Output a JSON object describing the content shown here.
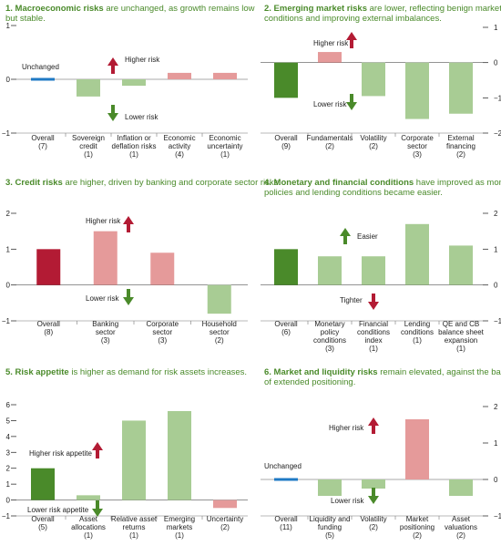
{
  "colors": {
    "dark_green": "#4a8a2a",
    "light_green": "#a8cc94",
    "dark_red": "#b31b34",
    "light_red": "#e59a9a",
    "blue": "#1f7ac4",
    "title_green": "#4a8a2a",
    "arrow_red": "#b31b34",
    "arrow_green": "#4a8a2a"
  },
  "chart_data": [
    {
      "type": "bar",
      "title_bold": "1. Macroeconomic risks",
      "title_lines": [
        " are unchanged, as growth remains low",
        "but stable."
      ],
      "categories": [
        [
          "Overall",
          "(7)"
        ],
        [
          "Sovereign",
          "credit",
          "(1)"
        ],
        [
          "Inflation or",
          "deflation risks",
          "(1)"
        ],
        [
          "Economic",
          "activity",
          "(4)"
        ],
        [
          "Economic",
          "uncertainty",
          "(1)"
        ]
      ],
      "values": [
        0,
        -0.32,
        -0.12,
        0.12,
        0.12
      ],
      "value_colors": [
        "blue",
        "light_green",
        "light_green",
        "light_red",
        "light_red"
      ],
      "ylim": [
        -1,
        1
      ],
      "yticks": [
        -1,
        0,
        1
      ],
      "axis_side": "left",
      "annotations": {
        "higher": "Higher risk",
        "lower": "Lower risk",
        "unchanged": "Unchanged"
      }
    },
    {
      "type": "bar",
      "title_bold": "2. Emerging market risks",
      "title_lines": [
        " are lower, reflecting benign market",
        "conditions and improving external imbalances."
      ],
      "categories": [
        [
          "Overall",
          "(9)"
        ],
        [
          "Fundamentals",
          "(2)"
        ],
        [
          "Volatility",
          "(2)"
        ],
        [
          "Corporate",
          "sector",
          "(3)"
        ],
        [
          "External",
          "financing",
          "(2)"
        ]
      ],
      "values": [
        -1.0,
        0.3,
        -0.95,
        -1.6,
        -1.45
      ],
      "value_colors": [
        "dark_green",
        "light_red",
        "light_green",
        "light_green",
        "light_green"
      ],
      "ylim": [
        -2,
        1
      ],
      "yticks": [
        -2,
        -1,
        0,
        1
      ],
      "axis_side": "right",
      "annotations": {
        "higher": "Higher risk",
        "lower": "Lower risk"
      }
    },
    {
      "type": "bar",
      "title_bold": "3. Credit risks",
      "title_lines": [
        " are higher, driven by banking and corporate sector risks."
      ],
      "categories": [
        [
          "Overall",
          "(8)"
        ],
        [
          "Banking",
          "sector",
          "(3)"
        ],
        [
          "Corporate",
          "sector",
          "(3)"
        ],
        [
          "Household",
          "sector",
          "(2)"
        ]
      ],
      "values": [
        1.0,
        1.5,
        0.9,
        -0.8
      ],
      "value_colors": [
        "dark_red",
        "light_red",
        "light_red",
        "light_green"
      ],
      "ylim": [
        -1,
        2
      ],
      "yticks": [
        -1,
        0,
        1,
        2
      ],
      "axis_side": "left",
      "annotations": {
        "higher": "Higher risk",
        "lower": "Lower risk"
      }
    },
    {
      "type": "bar",
      "title_bold": "4. Monetary and financial conditions",
      "title_lines": [
        " have improved as monetary",
        "policies and lending conditions became easier."
      ],
      "categories": [
        [
          "Overall",
          "(6)"
        ],
        [
          "Monetary",
          "policy",
          "conditions",
          "(3)"
        ],
        [
          "Financial",
          "conditions",
          "index",
          "(1)"
        ],
        [
          "Lending",
          "conditions",
          "(1)"
        ],
        [
          "QE and CB",
          "balance sheet",
          "expansion",
          "(1)"
        ]
      ],
      "values": [
        1.0,
        0.8,
        0.8,
        1.7,
        1.1
      ],
      "value_colors": [
        "dark_green",
        "light_green",
        "light_green",
        "light_green",
        "light_green"
      ],
      "ylim": [
        -1,
        2
      ],
      "yticks": [
        -1,
        0,
        1,
        2
      ],
      "axis_side": "right",
      "annotations": {
        "higher": "Easier",
        "lower": "Tighter"
      }
    },
    {
      "type": "bar",
      "title_bold": "5. Risk appetite",
      "title_lines": [
        " is higher as demand for risk assets increases."
      ],
      "categories": [
        [
          "Overall",
          "(5)"
        ],
        [
          "Asset",
          "allocations",
          "(1)"
        ],
        [
          "Relative asset",
          "returns",
          "(1)"
        ],
        [
          "Emerging",
          "markets",
          "(1)"
        ],
        [
          "Uncertainty",
          "(2)"
        ]
      ],
      "values": [
        2.0,
        0.3,
        5.0,
        5.6,
        -0.5
      ],
      "value_colors": [
        "dark_green",
        "light_green",
        "light_green",
        "light_green",
        "light_red"
      ],
      "ylim": [
        -1,
        6
      ],
      "yticks": [
        -1,
        0,
        1,
        2,
        3,
        4,
        5,
        6
      ],
      "axis_side": "left",
      "annotations": {
        "higher": "Higher risk appetite",
        "lower": "Lower risk appetite"
      }
    },
    {
      "type": "bar",
      "title_bold": "6. Market and liquidity risks",
      "title_lines": [
        " remain elevated, against the backdrop",
        "of extended positioning."
      ],
      "categories": [
        [
          "Overall",
          "(11)"
        ],
        [
          "Liquidity and",
          "funding",
          "(5)"
        ],
        [
          "Volatility",
          "(2)"
        ],
        [
          "Market",
          "positioning",
          "(2)"
        ],
        [
          "Asset",
          "valuations",
          "(2)"
        ]
      ],
      "values": [
        0,
        -0.45,
        -0.25,
        1.65,
        -0.45
      ],
      "value_colors": [
        "blue",
        "light_green",
        "light_green",
        "light_red",
        "light_green"
      ],
      "ylim": [
        -1,
        2
      ],
      "yticks": [
        -1,
        0,
        1,
        2
      ],
      "axis_side": "right",
      "annotations": {
        "higher": "Higher risk",
        "lower": "Lower risk",
        "unchanged": "Unchanged"
      }
    }
  ]
}
